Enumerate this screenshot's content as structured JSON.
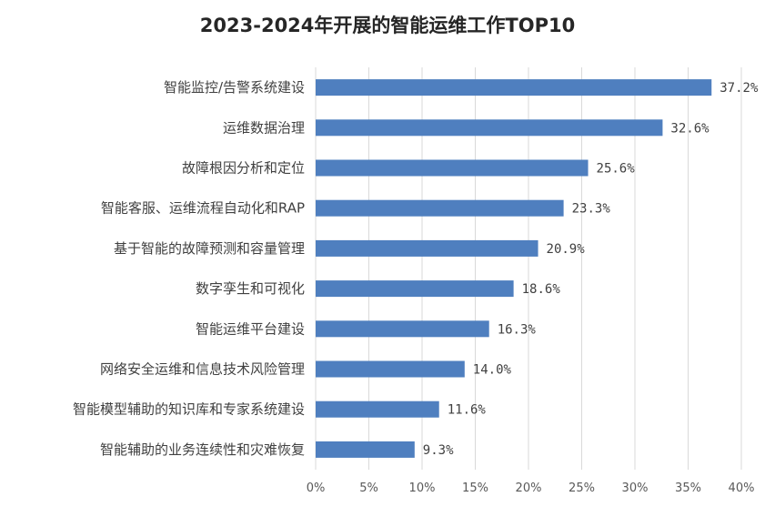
{
  "chart_data": {
    "type": "bar",
    "orientation": "horizontal",
    "title": "2023-2024年开展的智能运维工作TOP10",
    "categories": [
      "智能监控/告警系统建设",
      "运维数据治理",
      "故障根因分析和定位",
      "智能客服、运维流程自动化和RAP",
      "基于智能的故障预测和容量管理",
      "数字孪生和可视化",
      "智能运维平台建设",
      "网络安全运维和信息技术风险管理",
      "智能模型辅助的知识库和专家系统建设",
      "智能辅助的业务连续性和灾难恢复"
    ],
    "values": [
      37.2,
      32.6,
      25.6,
      23.3,
      20.9,
      18.6,
      16.3,
      14.0,
      11.6,
      9.3
    ],
    "value_labels": [
      "37.2%",
      "32.6%",
      "25.6%",
      "23.3%",
      "20.9%",
      "18.6%",
      "16.3%",
      "14.0%",
      "11.6%",
      "9.3%"
    ],
    "x_ticks": [
      "0%",
      "5%",
      "10%",
      "15%",
      "20%",
      "25%",
      "30%",
      "35%",
      "40%"
    ],
    "xlim": [
      0,
      40
    ],
    "xlabel": "",
    "ylabel": "",
    "grid": "vertical",
    "legend": "none",
    "bar_color": "#4f7fbf"
  }
}
